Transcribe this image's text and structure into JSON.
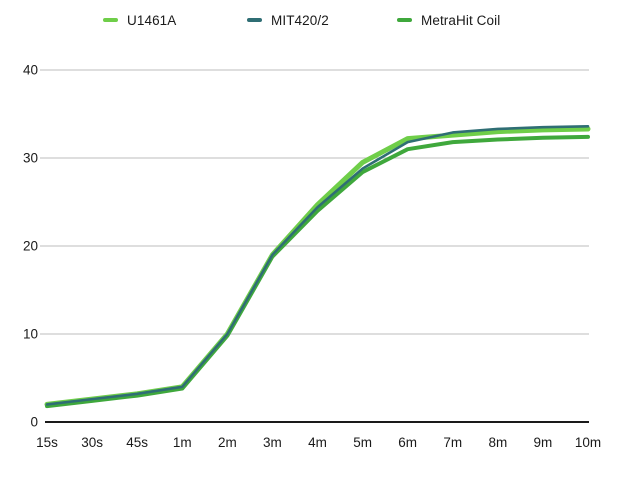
{
  "chart_data": {
    "type": "line",
    "title": "",
    "xlabel": "",
    "ylabel": "",
    "categories": [
      "15s",
      "30s",
      "45s",
      "1m",
      "2m",
      "3m",
      "4m",
      "5m",
      "6m",
      "7m",
      "8m",
      "9m",
      "10m"
    ],
    "series": [
      {
        "name": "U1461A",
        "color": "#6FCE49",
        "stroke_width": 5,
        "values": [
          2.0,
          2.6,
          3.2,
          4.0,
          10.0,
          19.0,
          24.7,
          29.5,
          32.2,
          32.6,
          33.0,
          33.2,
          33.3
        ]
      },
      {
        "name": "MIT420/2",
        "color": "#2F6E74",
        "stroke_width": 2.6,
        "values": [
          2.0,
          2.6,
          3.2,
          4.0,
          10.0,
          19.0,
          24.4,
          28.8,
          31.8,
          32.9,
          33.3,
          33.5,
          33.6
        ]
      },
      {
        "name": "MetraHit Coil",
        "color": "#3FA83C",
        "stroke_width": 4,
        "values": [
          1.8,
          2.4,
          3.0,
          3.8,
          9.8,
          18.8,
          24.0,
          28.4,
          31.0,
          31.8,
          32.1,
          32.3,
          32.4
        ]
      }
    ],
    "draw_order": [
      0,
      2,
      1
    ],
    "ylim": [
      0,
      40
    ],
    "yticks": [
      0,
      10,
      20,
      30,
      40
    ],
    "grid": true,
    "legend_position": "top",
    "colors": {
      "grid": "#C9C9C9",
      "axis": "#1A1A1A",
      "text": "#1A1A1A",
      "background": "#FFFFFF"
    }
  }
}
